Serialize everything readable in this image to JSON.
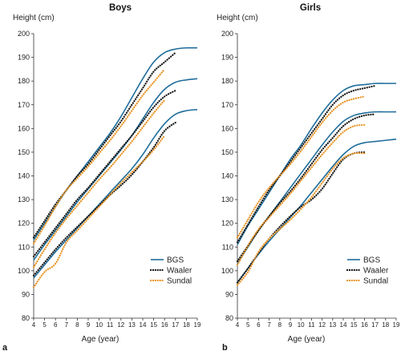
{
  "chart_data": [
    {
      "type": "line",
      "panel_letter": "a",
      "title": "Boys",
      "ylabel": "Height (cm)",
      "xlabel": "Age (year)",
      "xlim": [
        4,
        19
      ],
      "ylim": [
        80,
        200
      ],
      "xticks": [
        4,
        5,
        6,
        7,
        8,
        9,
        10,
        11,
        12,
        13,
        14,
        15,
        16,
        17,
        18,
        19
      ],
      "yticks": [
        80,
        90,
        100,
        110,
        120,
        130,
        140,
        150,
        160,
        170,
        180,
        190,
        200
      ],
      "grid": false,
      "legend_position": "bottom-right",
      "legend": [
        "BGS",
        "Waaler",
        "Sundal"
      ],
      "series": [
        {
          "name": "BGS",
          "style": "solid",
          "color": "#1f6e9c",
          "percentile": "high",
          "x": [
            4,
            5,
            6,
            7,
            8,
            9,
            10,
            11,
            12,
            13,
            14,
            15,
            16,
            17,
            18,
            19
          ],
          "y": [
            113,
            120,
            127,
            134,
            140,
            146,
            152,
            158,
            165,
            173,
            181,
            188,
            192,
            193.5,
            194,
            194
          ]
        },
        {
          "name": "BGS",
          "style": "solid",
          "color": "#1f6e9c",
          "percentile": "mid",
          "x": [
            4,
            5,
            6,
            7,
            8,
            9,
            10,
            11,
            12,
            13,
            14,
            15,
            16,
            17,
            18,
            19
          ],
          "y": [
            104.5,
            111,
            117,
            123,
            129,
            134.5,
            140,
            145.5,
            151,
            157,
            164,
            171,
            176.5,
            179.5,
            180.5,
            181
          ]
        },
        {
          "name": "BGS",
          "style": "solid",
          "color": "#1f6e9c",
          "percentile": "low",
          "x": [
            4,
            5,
            6,
            7,
            8,
            9,
            10,
            11,
            12,
            13,
            14,
            15,
            16,
            17,
            18,
            19
          ],
          "y": [
            97,
            102.5,
            108,
            113,
            118,
            123,
            128,
            133,
            138,
            143,
            149,
            156,
            162,
            166,
            167.5,
            168
          ]
        },
        {
          "name": "Waaler",
          "style": "dotted",
          "color": "#111111",
          "percentile": "high",
          "x": [
            4,
            5,
            6,
            7,
            8,
            9,
            10,
            11,
            12,
            13,
            14,
            15,
            16,
            17
          ],
          "y": [
            114,
            121,
            128,
            134,
            140,
            145,
            151,
            157,
            163,
            170,
            177,
            184,
            188,
            192
          ]
        },
        {
          "name": "Waaler",
          "style": "dotted",
          "color": "#111111",
          "percentile": "mid",
          "x": [
            4,
            5,
            6,
            7,
            8,
            9,
            10,
            11,
            12,
            13,
            14,
            15,
            16,
            17
          ],
          "y": [
            106,
            112,
            118,
            124,
            130,
            135,
            140.5,
            146,
            151.5,
            157,
            163,
            169,
            173.5,
            176
          ]
        },
        {
          "name": "Waaler",
          "style": "dotted",
          "color": "#111111",
          "percentile": "low",
          "x": [
            4,
            5,
            6,
            7,
            8,
            9,
            10,
            11,
            12,
            13,
            14,
            15,
            16,
            17
          ],
          "y": [
            98,
            103.5,
            109,
            114,
            118.5,
            123,
            127.5,
            132,
            136,
            140.5,
            146,
            152,
            159,
            162.5
          ]
        },
        {
          "name": "Sundal",
          "style": "dotted",
          "color": "#e8911e",
          "percentile": "high",
          "x": [
            4,
            5,
            6,
            7,
            8,
            9,
            10,
            11,
            12,
            13,
            14,
            15,
            16
          ],
          "y": [
            111.5,
            119,
            127,
            134,
            139,
            144,
            149.5,
            155,
            161,
            167.5,
            174,
            179.5,
            185
          ]
        },
        {
          "name": "Sundal",
          "style": "dotted",
          "color": "#e8911e",
          "percentile": "mid",
          "x": [
            4,
            5,
            6,
            7,
            8,
            9,
            10,
            11,
            12,
            13,
            14,
            15,
            16
          ],
          "y": [
            101.5,
            109,
            116,
            122,
            127.5,
            133,
            138.5,
            143.5,
            149,
            154.5,
            160.5,
            166.5,
            172
          ]
        },
        {
          "name": "Sundal",
          "style": "dotted",
          "color": "#e8911e",
          "percentile": "low",
          "x": [
            4,
            5,
            6,
            7,
            8,
            9,
            10,
            11,
            12,
            13,
            14,
            15,
            16
          ],
          "y": [
            93,
            99.5,
            103,
            112,
            117,
            122,
            127,
            132,
            137,
            141.5,
            146,
            151,
            157
          ]
        }
      ]
    },
    {
      "type": "line",
      "panel_letter": "b",
      "title": "Girls",
      "ylabel": "Height (cm)",
      "xlabel": "Age (year)",
      "xlim": [
        4,
        19
      ],
      "ylim": [
        80,
        200
      ],
      "xticks": [
        4,
        5,
        6,
        7,
        8,
        9,
        10,
        11,
        12,
        13,
        14,
        15,
        16,
        17,
        18,
        19
      ],
      "yticks": [
        80,
        90,
        100,
        110,
        120,
        130,
        140,
        150,
        160,
        170,
        180,
        190,
        200
      ],
      "grid": false,
      "legend_position": "bottom-right",
      "legend": [
        "BGS",
        "Waaler",
        "Sundal"
      ],
      "series": [
        {
          "name": "BGS",
          "style": "solid",
          "color": "#1f6e9c",
          "percentile": "high",
          "x": [
            4,
            5,
            6,
            7,
            8,
            9,
            10,
            11,
            12,
            13,
            14,
            15,
            16,
            17,
            18,
            19
          ],
          "y": [
            111,
            119,
            126,
            133,
            140,
            147,
            153,
            160,
            166.5,
            172,
            176,
            178,
            178.5,
            179,
            179,
            179
          ]
        },
        {
          "name": "BGS",
          "style": "solid",
          "color": "#1f6e9c",
          "percentile": "mid",
          "x": [
            4,
            5,
            6,
            7,
            8,
            9,
            10,
            11,
            12,
            13,
            14,
            15,
            16,
            17,
            18,
            19
          ],
          "y": [
            103,
            110,
            117,
            123,
            129,
            135,
            141,
            147,
            153,
            158.5,
            163,
            165.5,
            166.5,
            167,
            167,
            167
          ]
        },
        {
          "name": "BGS",
          "style": "solid",
          "color": "#1f6e9c",
          "percentile": "low",
          "x": [
            4,
            5,
            6,
            7,
            8,
            9,
            10,
            11,
            12,
            13,
            14,
            15,
            16,
            17,
            18,
            19
          ],
          "y": [
            95,
            101,
            107,
            112.5,
            117.5,
            122.5,
            127.5,
            133,
            138.5,
            144,
            149,
            152.5,
            154,
            154.5,
            155,
            155.5
          ]
        },
        {
          "name": "Waaler",
          "style": "dotted",
          "color": "#111111",
          "percentile": "high",
          "x": [
            4,
            5,
            6,
            7,
            8,
            9,
            10,
            11,
            12,
            13,
            14,
            15,
            16,
            17
          ],
          "y": [
            112,
            119.5,
            127,
            134,
            140,
            146,
            152,
            158,
            164,
            170,
            174,
            176,
            177,
            178
          ]
        },
        {
          "name": "Waaler",
          "style": "dotted",
          "color": "#111111",
          "percentile": "mid",
          "x": [
            4,
            5,
            6,
            7,
            8,
            9,
            10,
            11,
            12,
            13,
            14,
            15,
            16,
            17
          ],
          "y": [
            104,
            110.5,
            117,
            123,
            128.5,
            133.5,
            139,
            145,
            151,
            156,
            161,
            164,
            165.5,
            166
          ]
        },
        {
          "name": "Waaler",
          "style": "dotted",
          "color": "#111111",
          "percentile": "low",
          "x": [
            4,
            5,
            6,
            7,
            8,
            9,
            10,
            11,
            12,
            13,
            14,
            15,
            16
          ],
          "y": [
            95,
            101,
            107.5,
            113.5,
            118.5,
            123,
            127,
            130,
            134.5,
            141,
            147,
            149.5,
            150
          ]
        },
        {
          "name": "Sundal",
          "style": "dotted",
          "color": "#e8911e",
          "percentile": "high",
          "x": [
            4,
            5,
            6,
            7,
            8,
            9,
            10,
            11,
            12,
            13,
            14,
            15,
            16
          ],
          "y": [
            114,
            121.5,
            129,
            135,
            140,
            145,
            150.5,
            156.5,
            162.5,
            167.5,
            171,
            172.5,
            173.5
          ]
        },
        {
          "name": "Sundal",
          "style": "dotted",
          "color": "#e8911e",
          "percentile": "mid",
          "x": [
            4,
            5,
            6,
            7,
            8,
            9,
            10,
            11,
            12,
            13,
            14,
            15,
            16
          ],
          "y": [
            102.5,
            110.5,
            117.5,
            122.5,
            127.5,
            132.5,
            138,
            143.5,
            149,
            154,
            158.5,
            161,
            161.5
          ]
        },
        {
          "name": "Sundal",
          "style": "dotted",
          "color": "#e8911e",
          "percentile": "low",
          "x": [
            4,
            5,
            6,
            7,
            8,
            9,
            10,
            11,
            12,
            13,
            14,
            15,
            16
          ],
          "y": [
            94,
            99.5,
            108,
            113.5,
            117.5,
            121.5,
            126,
            131,
            137,
            143,
            147.5,
            149.5,
            149.5
          ]
        }
      ]
    }
  ]
}
